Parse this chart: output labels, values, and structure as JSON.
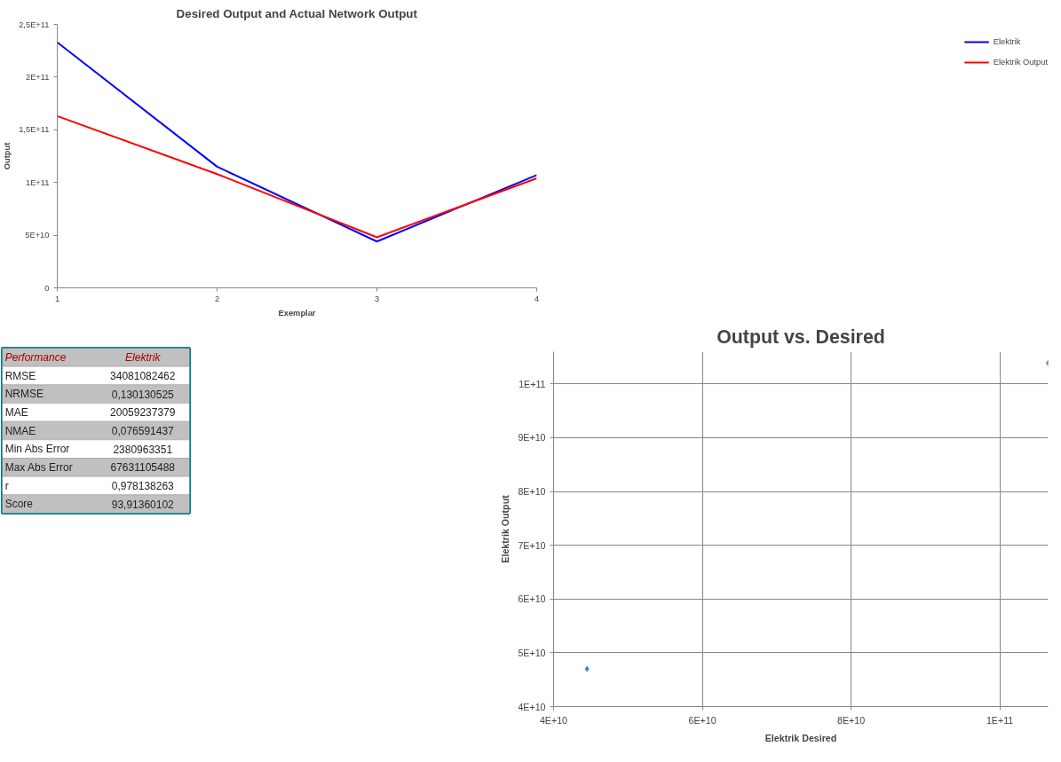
{
  "chart_data": [
    {
      "type": "line",
      "title": "Desired Output and Actual Network Output",
      "xlabel": "Exemplar",
      "ylabel": "Output",
      "categories": [
        "1",
        "2",
        "3",
        "4"
      ],
      "series": [
        {
          "name": "Elektrik",
          "color": "#0000ff",
          "values": [
            233000000000.0,
            115000000000.0,
            44000000000.0,
            107000000000.0
          ]
        },
        {
          "name": "Elektrik Output",
          "color": "#ff0000",
          "values": [
            163000000000.0,
            108000000000.0,
            48000000000.0,
            104000000000.0
          ]
        }
      ],
      "ylim": [
        0,
        250000000000.0
      ],
      "yticks": [
        {
          "value": 0,
          "label": "0"
        },
        {
          "value": 50000000000.0,
          "label": "5E+10"
        },
        {
          "value": 100000000000.0,
          "label": "1E+11"
        },
        {
          "value": 150000000000.0,
          "label": "1,5E+11"
        },
        {
          "value": 200000000000.0,
          "label": "2E+11"
        },
        {
          "value": 250000000000.0,
          "label": "2,5E+11"
        }
      ],
      "grid": false,
      "legend": "right",
      "marker": "none",
      "line_style": "solid"
    },
    {
      "type": "other",
      "annotations": [
        "Performance",
        "Elektrik",
        "RMSE",
        "34081082462",
        "NRMSE",
        "0,130130525",
        "MAE",
        "20059237379",
        "NMAE",
        "0,076591437",
        "Min Abs Error",
        "2380963351",
        "Max Abs Error",
        "67631105488",
        "r",
        "0,978138263",
        "Score",
        "93,91360102"
      ]
    },
    {
      "type": "scatter",
      "title": "Output vs. Desired",
      "xlabel": "Elektrik Desired",
      "ylabel": "Elektrik Output",
      "x": [
        44500000000.0,
        106500000000.0
      ],
      "series": [
        {
          "color": "#4a86d0",
          "values": [
            47000000000.0,
            103900000000.0
          ]
        }
      ],
      "xlim": [
        40000000000.0,
        106500000000.0
      ],
      "xticks": [
        {
          "value": 40000000000.0,
          "label": "4E+10"
        },
        {
          "value": 60000000000.0,
          "label": "6E+10"
        },
        {
          "value": 80000000000.0,
          "label": "8E+10"
        },
        {
          "value": 100000000000.0,
          "label": "1E+11"
        }
      ],
      "ylim": [
        40000000000.0,
        106000000000.0
      ],
      "yticks": [
        {
          "value": 40000000000.0,
          "label": "4E+10"
        },
        {
          "value": 50000000000.0,
          "label": "5E+10"
        },
        {
          "value": 60000000000.0,
          "label": "6E+10"
        },
        {
          "value": 70000000000.0,
          "label": "7E+10"
        },
        {
          "value": 80000000000.0,
          "label": "8E+10"
        },
        {
          "value": 90000000000.0,
          "label": "9E+10"
        },
        {
          "value": 100000000000.0,
          "label": "1E+11"
        }
      ],
      "grid": true,
      "marker": "diamond"
    }
  ]
}
